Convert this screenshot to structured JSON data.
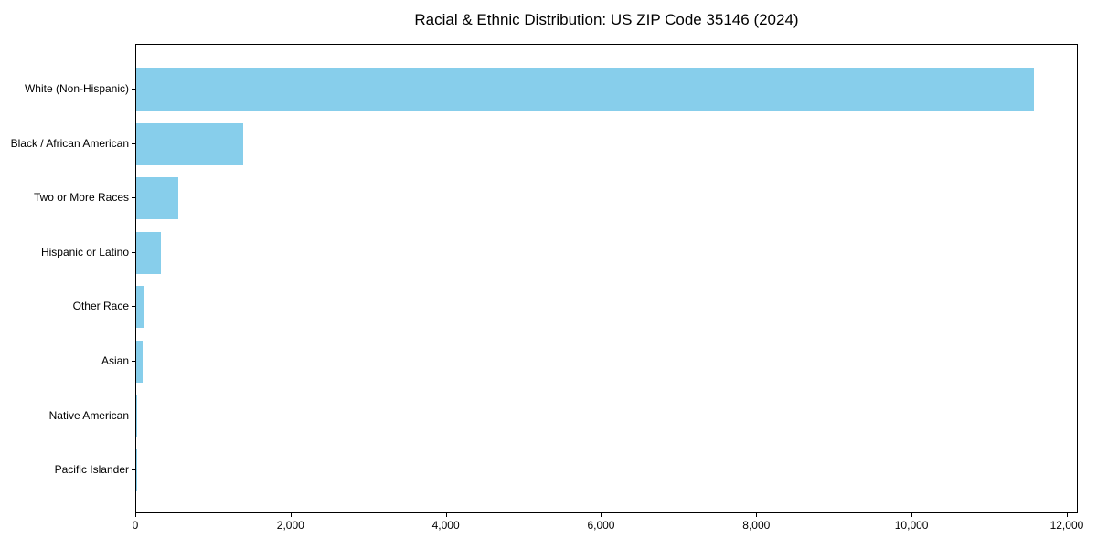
{
  "title": "Racial & Ethnic Distribution: US ZIP Code 35146 (2024)",
  "chart_data": {
    "type": "bar",
    "orientation": "horizontal",
    "title": "Racial & Ethnic Distribution: US ZIP Code 35146 (2024)",
    "xlabel": "",
    "ylabel": "",
    "categories": [
      "White (Non-Hispanic)",
      "Black / African American",
      "Two or More Races",
      "Hispanic or Latino",
      "Other Race",
      "Asian",
      "Native American",
      "Pacific Islander"
    ],
    "values": [
      11560,
      1378,
      540,
      318,
      105,
      80,
      12,
      2
    ],
    "xlim": [
      0,
      12142
    ],
    "x_ticks": [
      0,
      2000,
      4000,
      6000,
      8000,
      10000,
      12000
    ],
    "x_tick_labels": [
      "0",
      "2,000",
      "4,000",
      "6,000",
      "8,000",
      "10,000",
      "12,000"
    ],
    "bar_color": "#87CEEB",
    "grid": false,
    "legend": false,
    "background_color": "#ffffff",
    "spine_color": "#000000",
    "text_color": "#000000"
  }
}
